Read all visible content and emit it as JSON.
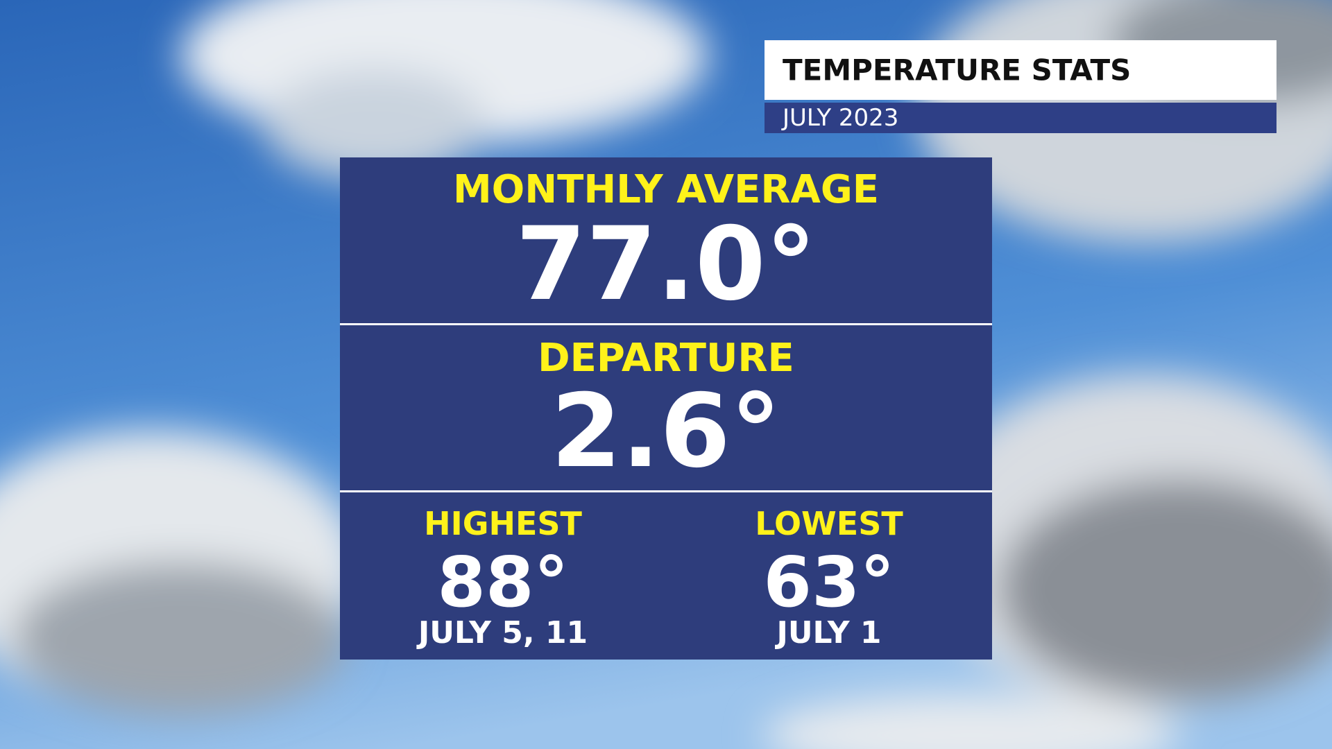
{
  "header": {
    "title": "TEMPERATURE STATS",
    "subtitle": "JULY 2023"
  },
  "panel": {
    "monthly_average": {
      "label": "MONTHLY AVERAGE",
      "value": "77.0°"
    },
    "departure": {
      "label": "DEPARTURE",
      "value": "2.6°"
    },
    "highest": {
      "label": "HIGHEST",
      "value": "88°",
      "date": "JULY 5, 11"
    },
    "lowest": {
      "label": "LOWEST",
      "value": "63°",
      "date": "JULY 1"
    }
  }
}
